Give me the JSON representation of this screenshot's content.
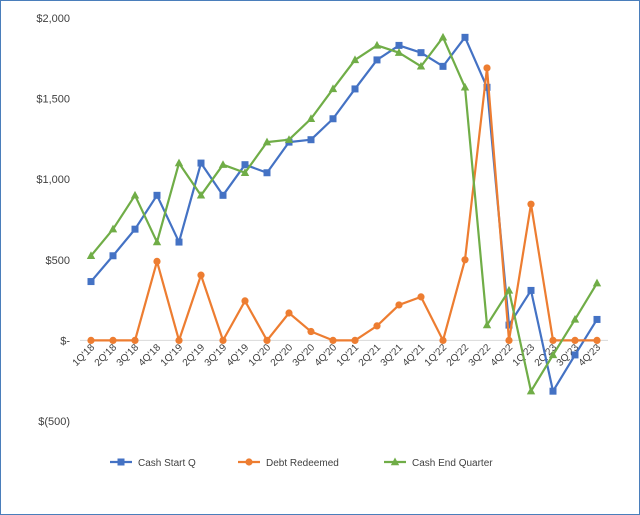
{
  "chart_data": {
    "type": "line",
    "title": "",
    "xlabel": "",
    "ylabel": "",
    "ylim": [
      -500,
      2000
    ],
    "y_ticks": [
      {
        "value": 2000,
        "label": "$2,000"
      },
      {
        "value": 1500,
        "label": "$1,500"
      },
      {
        "value": 1000,
        "label": "$1,000"
      },
      {
        "value": 500,
        "label": "$500"
      },
      {
        "value": 0,
        "label": "$-"
      },
      {
        "value": -500,
        "label": "$(500)"
      }
    ],
    "grid": false,
    "legend_position": "bottom",
    "categories": [
      "1Q'18",
      "2Q'18",
      "3Q'18",
      "4Q'18",
      "1Q'19",
      "2Q'19",
      "3Q'19",
      "4Q'19",
      "1Q'20",
      "2Q'20",
      "3Q'20",
      "4Q'20",
      "1Q'21",
      "2Q'21",
      "3Q'21",
      "4Q'21",
      "1Q'22",
      "2Q'22",
      "3Q'22",
      "4Q'22",
      "1Q'23",
      "2Q'23",
      "3Q'23",
      "4Q'23"
    ],
    "series": [
      {
        "name": "Cash Start Q",
        "color": "#4472c4",
        "marker": "square",
        "values": [
          365,
          525,
          690,
          900,
          610,
          1100,
          900,
          1090,
          1040,
          1230,
          1245,
          1375,
          1560,
          1740,
          1830,
          1785,
          1700,
          1880,
          1570,
          95,
          310,
          -315,
          -90,
          130
        ]
      },
      {
        "name": "Debt Redeemed",
        "color": "#ed7d31",
        "marker": "circle",
        "values": [
          0,
          0,
          0,
          490,
          0,
          405,
          0,
          245,
          0,
          170,
          55,
          0,
          0,
          90,
          220,
          270,
          0,
          500,
          1690,
          0,
          845,
          0,
          0,
          0
        ]
      },
      {
        "name": "Cash End Quarter",
        "color": "#70ad47",
        "marker": "triangle",
        "values": [
          525,
          690,
          900,
          610,
          1100,
          900,
          1090,
          1040,
          1230,
          1245,
          1375,
          1560,
          1740,
          1830,
          1785,
          1700,
          1880,
          1570,
          95,
          310,
          -315,
          -90,
          130,
          355
        ]
      }
    ]
  }
}
